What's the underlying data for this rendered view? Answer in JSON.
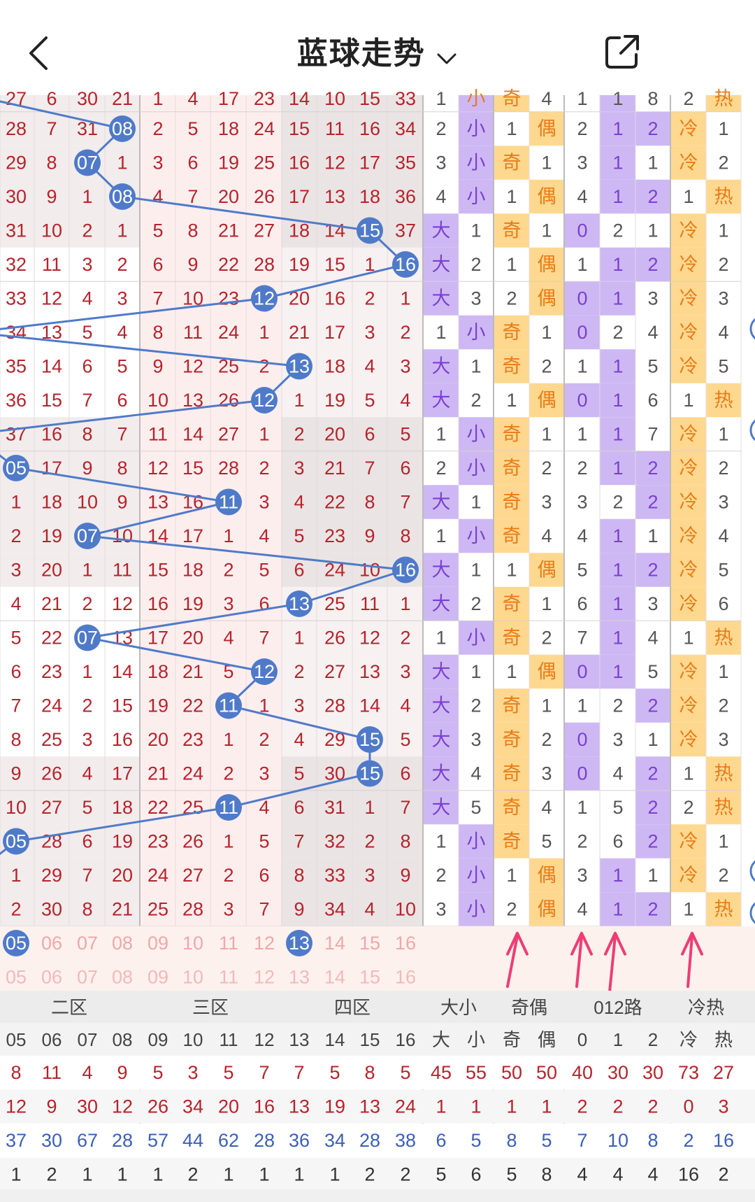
{
  "header": {
    "title": "蓝球走势"
  },
  "zones": [
    "二区",
    "三区",
    "四区",
    "大小",
    "奇偶",
    "012路",
    "冷热"
  ],
  "subheaders": [
    "05",
    "06",
    "07",
    "08",
    "09",
    "10",
    "11",
    "12",
    "13",
    "14",
    "15",
    "16",
    "大",
    "小",
    "奇",
    "偶",
    "0",
    "1",
    "2",
    "冷",
    "热"
  ],
  "top_partial_row": [
    "27",
    "6",
    "30",
    "21",
    "1",
    "4",
    "17",
    "23",
    "14",
    "10",
    "15",
    "33",
    "1",
    "小",
    "奇",
    "4",
    "1",
    "1",
    "8",
    "2",
    "热"
  ],
  "rows": [
    {
      "c": [
        "28",
        "7",
        "31",
        "",
        "2",
        "5",
        "18",
        "24",
        "15",
        "11",
        "16",
        "34",
        "2",
        "小",
        "1",
        "偶",
        "2",
        "1",
        "2",
        "冷",
        "1"
      ],
      "ball": 3,
      "v": "08"
    },
    {
      "c": [
        "29",
        "8",
        "",
        "1",
        "3",
        "6",
        "19",
        "25",
        "16",
        "12",
        "17",
        "35",
        "3",
        "小",
        "奇",
        "1",
        "3",
        "1",
        "1",
        "冷",
        "2"
      ],
      "ball": 2,
      "v": "07"
    },
    {
      "c": [
        "30",
        "9",
        "1",
        "",
        "4",
        "7",
        "20",
        "26",
        "17",
        "13",
        "18",
        "36",
        "4",
        "小",
        "1",
        "偶",
        "4",
        "1",
        "2",
        "1",
        "热"
      ],
      "ball": 3,
      "v": "08"
    },
    {
      "c": [
        "31",
        "10",
        "2",
        "1",
        "5",
        "8",
        "21",
        "27",
        "18",
        "14",
        "",
        "37",
        "大",
        "1",
        "奇",
        "1",
        "0",
        "2",
        "1",
        "冷",
        "1"
      ],
      "ball": 10,
      "v": "15"
    },
    {
      "c": [
        "32",
        "11",
        "3",
        "2",
        "6",
        "9",
        "22",
        "28",
        "19",
        "15",
        "1",
        "",
        "大",
        "2",
        "1",
        "偶",
        "1",
        "1",
        "2",
        "冷",
        "2"
      ],
      "ball": 11,
      "v": "16"
    },
    {
      "c": [
        "33",
        "12",
        "4",
        "3",
        "7",
        "10",
        "23",
        "",
        "20",
        "16",
        "2",
        "1",
        "大",
        "3",
        "2",
        "偶",
        "0",
        "1",
        "3",
        "冷",
        "3"
      ],
      "ball": 7,
      "v": "12"
    },
    {
      "c": [
        "34",
        "13",
        "5",
        "4",
        "8",
        "11",
        "24",
        "1",
        "21",
        "17",
        "3",
        "2",
        "1",
        "小",
        "奇",
        "1",
        "0",
        "2",
        "4",
        "冷",
        "4"
      ],
      "ball": null,
      "v": ""
    },
    {
      "c": [
        "35",
        "14",
        "6",
        "5",
        "9",
        "12",
        "25",
        "2",
        "",
        "18",
        "4",
        "3",
        "大",
        "1",
        "奇",
        "2",
        "1",
        "1",
        "5",
        "冷",
        "5"
      ],
      "ball": 8,
      "v": "13"
    },
    {
      "c": [
        "36",
        "15",
        "7",
        "6",
        "10",
        "13",
        "26",
        "",
        "1",
        "19",
        "5",
        "4",
        "大",
        "2",
        "1",
        "偶",
        "0",
        "1",
        "6",
        "1",
        "热"
      ],
      "ball": 7,
      "v": "12"
    },
    {
      "c": [
        "37",
        "16",
        "8",
        "7",
        "11",
        "14",
        "27",
        "1",
        "2",
        "20",
        "6",
        "5",
        "1",
        "小",
        "奇",
        "1",
        "1",
        "1",
        "7",
        "冷",
        "1"
      ],
      "ball": null,
      "v": ""
    },
    {
      "c": [
        "",
        "17",
        "9",
        "8",
        "12",
        "15",
        "28",
        "2",
        "3",
        "21",
        "7",
        "6",
        "2",
        "小",
        "奇",
        "2",
        "2",
        "1",
        "2",
        "冷",
        "2"
      ],
      "ball": 0,
      "v": "05"
    },
    {
      "c": [
        "1",
        "18",
        "10",
        "9",
        "13",
        "16",
        "",
        "3",
        "4",
        "22",
        "8",
        "7",
        "大",
        "1",
        "奇",
        "3",
        "3",
        "2",
        "2",
        "冷",
        "3"
      ],
      "ball": 6,
      "v": "11"
    },
    {
      "c": [
        "2",
        "19",
        "",
        "10",
        "14",
        "17",
        "1",
        "4",
        "5",
        "23",
        "9",
        "8",
        "1",
        "小",
        "奇",
        "4",
        "4",
        "1",
        "1",
        "冷",
        "4"
      ],
      "ball": 2,
      "v": "07"
    },
    {
      "c": [
        "3",
        "20",
        "1",
        "11",
        "15",
        "18",
        "2",
        "5",
        "6",
        "24",
        "10",
        "",
        "大",
        "1",
        "1",
        "偶",
        "5",
        "1",
        "2",
        "冷",
        "5"
      ],
      "ball": 11,
      "v": "16"
    },
    {
      "c": [
        "4",
        "21",
        "2",
        "12",
        "16",
        "19",
        "3",
        "6",
        "",
        "25",
        "11",
        "1",
        "大",
        "2",
        "奇",
        "1",
        "6",
        "1",
        "3",
        "冷",
        "6"
      ],
      "ball": 8,
      "v": "13"
    },
    {
      "c": [
        "5",
        "22",
        "",
        "13",
        "17",
        "20",
        "4",
        "7",
        "1",
        "26",
        "12",
        "2",
        "1",
        "小",
        "奇",
        "2",
        "7",
        "1",
        "4",
        "1",
        "热"
      ],
      "ball": 2,
      "v": "07"
    },
    {
      "c": [
        "6",
        "23",
        "1",
        "14",
        "18",
        "21",
        "5",
        "",
        "2",
        "27",
        "13",
        "3",
        "大",
        "1",
        "1",
        "偶",
        "0",
        "1",
        "5",
        "冷",
        "1"
      ],
      "ball": 7,
      "v": "12"
    },
    {
      "c": [
        "7",
        "24",
        "2",
        "15",
        "19",
        "22",
        "",
        "1",
        "3",
        "28",
        "14",
        "4",
        "大",
        "2",
        "奇",
        "1",
        "1",
        "2",
        "2",
        "冷",
        "2"
      ],
      "ball": 6,
      "v": "11"
    },
    {
      "c": [
        "8",
        "25",
        "3",
        "16",
        "20",
        "23",
        "1",
        "2",
        "4",
        "29",
        "",
        "5",
        "大",
        "3",
        "奇",
        "2",
        "0",
        "3",
        "1",
        "冷",
        "3"
      ],
      "ball": 10,
      "v": "15"
    },
    {
      "c": [
        "9",
        "26",
        "4",
        "17",
        "21",
        "24",
        "2",
        "3",
        "5",
        "30",
        "",
        "6",
        "大",
        "4",
        "奇",
        "3",
        "0",
        "4",
        "2",
        "1",
        "热"
      ],
      "ball": 10,
      "v": "15"
    },
    {
      "c": [
        "10",
        "27",
        "5",
        "18",
        "22",
        "25",
        "",
        "4",
        "6",
        "31",
        "1",
        "7",
        "大",
        "5",
        "奇",
        "4",
        "1",
        "5",
        "2",
        "2",
        "热"
      ],
      "ball": 6,
      "v": "11"
    },
    {
      "c": [
        "",
        "28",
        "6",
        "19",
        "23",
        "26",
        "1",
        "5",
        "7",
        "32",
        "2",
        "8",
        "1",
        "小",
        "奇",
        "5",
        "2",
        "6",
        "2",
        "冷",
        "1"
      ],
      "ball": 0,
      "v": "05"
    },
    {
      "c": [
        "1",
        "29",
        "7",
        "20",
        "24",
        "27",
        "2",
        "6",
        "8",
        "33",
        "3",
        "9",
        "2",
        "小",
        "1",
        "偶",
        "3",
        "1",
        "1",
        "冷",
        "2"
      ],
      "ball": null,
      "v": ""
    },
    {
      "c": [
        "2",
        "30",
        "8",
        "21",
        "25",
        "28",
        "3",
        "7",
        "9",
        "34",
        "4",
        "10",
        "3",
        "小",
        "2",
        "偶",
        "4",
        "1",
        "2",
        "1",
        "热"
      ],
      "ball": null,
      "v": ""
    }
  ],
  "pick_row1": [
    "",
    "06",
    "07",
    "08",
    "09",
    "10",
    "11",
    "12",
    "",
    "14",
    "15",
    "16"
  ],
  "pick_row1_balls": [
    {
      "col": 0,
      "v": "05"
    },
    {
      "col": 8,
      "v": "13"
    }
  ],
  "pick_row2": [
    "05",
    "06",
    "07",
    "08",
    "09",
    "10",
    "11",
    "12",
    "13",
    "14",
    "15",
    "16"
  ],
  "stats": [
    [
      "8",
      "11",
      "4",
      "9",
      "5",
      "3",
      "5",
      "7",
      "7",
      "5",
      "8",
      "5",
      "45",
      "55",
      "50",
      "50",
      "40",
      "30",
      "30",
      "73",
      "27"
    ],
    [
      "12",
      "9",
      "30",
      "12",
      "26",
      "34",
      "20",
      "16",
      "13",
      "19",
      "13",
      "24",
      "1",
      "1",
      "1",
      "1",
      "2",
      "2",
      "2",
      "0",
      "3"
    ],
    [
      "37",
      "30",
      "67",
      "28",
      "57",
      "44",
      "62",
      "28",
      "36",
      "34",
      "28",
      "38",
      "6",
      "5",
      "8",
      "5",
      "7",
      "10",
      "8",
      "2",
      "16"
    ],
    [
      "1",
      "2",
      "1",
      "1",
      "1",
      "2",
      "1",
      "1",
      "1",
      "1",
      "2",
      "2",
      "5",
      "6",
      "5",
      "8",
      "4",
      "4",
      "4",
      "16",
      "2"
    ]
  ],
  "colors": {
    "ball": "#4f7ac9",
    "red": "#b5242c",
    "blue": "#3b5fb8",
    "purple": "#cdb8f3",
    "orange": "#ffd890",
    "pinkbg": "#fdeeee",
    "greybg": "#eeeeee",
    "arrow": "#ee3d74"
  }
}
